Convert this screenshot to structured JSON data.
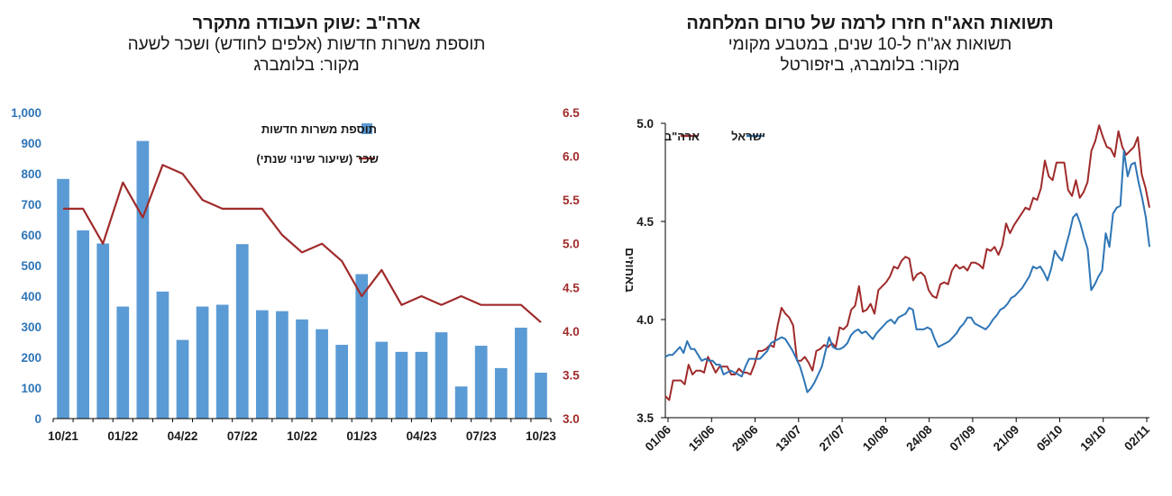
{
  "chart_data": [
    {
      "type": "bar+line",
      "title": "ארה\"ב :שוק העבודה מתקרר",
      "subtitle": "תוספת משרות חדשות (אלפים לחודש) ושכר לשעה",
      "source": "מקור: בלומברג",
      "colors": {
        "bar": "#5b9bd5",
        "line": "#a02b2b",
        "left_axis": "#2e75b6",
        "right_axis": "#a02b2b"
      },
      "categories": [
        "10/21",
        "11/21",
        "12/21",
        "01/22",
        "02/22",
        "03/22",
        "04/22",
        "05/22",
        "06/22",
        "07/22",
        "08/22",
        "09/22",
        "10/22",
        "11/22",
        "12/22",
        "01/23",
        "02/23",
        "03/23",
        "04/23",
        "05/23",
        "06/23",
        "07/23",
        "08/23",
        "09/23",
        "10/23"
      ],
      "xtick_labels": [
        "10/21",
        "01/22",
        "04/22",
        "07/22",
        "10/22",
        "01/23",
        "04/23",
        "07/23",
        "10/23"
      ],
      "series": [
        {
          "name": "תוספת משרות חדשות",
          "kind": "bar",
          "axis": "left",
          "values": [
            783,
            615,
            572,
            366,
            907,
            415,
            257,
            366,
            372,
            570,
            354,
            351,
            324,
            292,
            241,
            472,
            251,
            218,
            218,
            282,
            105,
            238,
            165,
            297,
            150
          ]
        },
        {
          "name": "שכר (שיעור שינוי שנתי)",
          "kind": "line",
          "axis": "right",
          "values": [
            5.4,
            5.4,
            5.0,
            5.7,
            5.3,
            5.9,
            5.8,
            5.5,
            5.4,
            5.4,
            5.4,
            5.1,
            4.9,
            5.0,
            4.8,
            4.4,
            4.7,
            4.3,
            4.4,
            4.3,
            4.4,
            4.3,
            4.3,
            4.3,
            4.1
          ]
        }
      ],
      "ylim_left": [
        0,
        1000
      ],
      "yticks_left": [
        "0",
        "100",
        "200",
        "300",
        "400",
        "500",
        "600",
        "700",
        "800",
        "900",
        "1,000"
      ],
      "ylim_right": [
        3.0,
        6.5
      ],
      "yticks_right": [
        "3.0",
        "3.5",
        "4.0",
        "4.5",
        "5.0",
        "5.5",
        "6.0",
        "6.5"
      ],
      "legend": {
        "bar_label": "תוספת משרות חדשות",
        "line_label": "שכר (שיעור שינוי שנתי)",
        "position": "top-right"
      }
    },
    {
      "type": "line",
      "title": "תשואות האג\"ח חזרו לרמה של טרום המלחמה",
      "subtitle": "תשואות אג\"ח ל-10 שנים, במטבע מקומי",
      "source": "מקור: בלומברג, ביזפורטל",
      "ylabel": "באחוזים",
      "ylim": [
        3.5,
        5.0
      ],
      "yticks": [
        "3.5",
        "4.0",
        "4.5",
        "5.0"
      ],
      "xtick_labels": [
        "01/06",
        "15/06",
        "29/06",
        "13/07",
        "27/07",
        "10/08",
        "24/08",
        "07/09",
        "21/09",
        "05/10",
        "19/10",
        "02/11"
      ],
      "legend": {
        "us_label": "ארה\"ב",
        "il_label": "ישראל",
        "position": "top-left"
      },
      "colors": {
        "us": "#a02b2b",
        "il": "#2e75b6"
      },
      "series": [
        {
          "name": "ארה\"ב",
          "key": "us",
          "values": [
            3.61,
            3.59,
            3.69,
            3.69,
            3.69,
            3.67,
            3.77,
            3.72,
            3.74,
            3.74,
            3.73,
            3.81,
            3.77,
            3.73,
            3.76,
            3.76,
            3.76,
            3.72,
            3.72,
            3.75,
            3.73,
            3.73,
            3.72,
            3.77,
            3.84,
            3.84,
            3.85,
            3.87,
            3.86,
            3.97,
            4.06,
            4.03,
            4.01,
            3.97,
            3.79,
            3.79,
            3.81,
            3.78,
            3.74,
            3.84,
            3.85,
            3.87,
            3.86,
            3.88,
            3.86,
            3.96,
            3.95,
            3.97,
            4.05,
            4.07,
            4.17,
            4.04,
            4.05,
            4.08,
            4.03,
            4.15,
            4.17,
            4.19,
            4.22,
            4.27,
            4.26,
            4.3,
            4.32,
            4.31,
            4.2,
            4.23,
            4.24,
            4.22,
            4.15,
            4.12,
            4.11,
            4.18,
            4.19,
            4.18,
            4.25,
            4.28,
            4.26,
            4.27,
            4.25,
            4.29,
            4.29,
            4.28,
            4.26,
            4.36,
            4.35,
            4.37,
            4.33,
            4.38,
            4.49,
            4.44,
            4.48,
            4.51,
            4.54,
            4.57,
            4.56,
            4.62,
            4.61,
            4.67,
            4.81,
            4.73,
            4.71,
            4.8,
            4.8,
            4.8,
            4.66,
            4.63,
            4.71,
            4.62,
            4.65,
            4.7,
            4.86,
            4.91,
            4.99,
            4.93,
            4.88,
            4.87,
            4.83,
            4.96,
            4.88,
            4.84,
            4.86,
            4.88,
            4.93,
            4.74,
            4.67,
            4.57
          ]
        },
        {
          "name": "ישראל",
          "key": "il",
          "values": [
            3.81,
            3.82,
            3.82,
            3.84,
            3.86,
            3.83,
            3.89,
            3.85,
            3.85,
            3.82,
            3.79,
            3.8,
            3.79,
            3.79,
            3.77,
            3.77,
            3.72,
            3.73,
            3.74,
            3.73,
            3.72,
            3.71,
            3.76,
            3.8,
            3.8,
            3.8,
            3.8,
            3.82,
            3.84,
            3.88,
            3.89,
            3.9,
            3.91,
            3.9,
            3.87,
            3.84,
            3.8,
            3.76,
            3.7,
            3.63,
            3.65,
            3.68,
            3.72,
            3.76,
            3.84,
            3.91,
            3.86,
            3.85,
            3.85,
            3.86,
            3.88,
            3.92,
            3.94,
            3.95,
            3.93,
            3.94,
            3.92,
            3.9,
            3.93,
            3.95,
            3.97,
            3.99,
            4.0,
            3.98,
            4.01,
            4.02,
            4.03,
            4.06,
            4.05,
            3.95,
            3.95,
            3.95,
            3.96,
            3.95,
            3.9,
            3.86,
            3.87,
            3.88,
            3.89,
            3.91,
            3.93,
            3.96,
            3.98,
            4.01,
            4.01,
            3.98,
            3.97,
            3.96,
            3.95,
            3.97,
            4.0,
            4.02,
            4.05,
            4.06,
            4.08,
            4.11,
            4.12,
            4.14,
            4.16,
            4.19,
            4.22,
            4.27,
            4.26,
            4.27,
            4.24,
            4.2,
            4.26,
            4.35,
            4.32,
            4.3,
            4.37,
            4.44,
            4.52,
            4.54,
            4.49,
            4.42,
            4.36,
            4.15,
            4.18,
            4.22,
            4.25,
            4.44,
            4.37,
            4.54,
            4.57,
            4.58,
            4.86,
            4.73,
            4.79,
            4.8,
            4.7,
            4.62,
            4.52,
            4.37
          ]
        }
      ]
    }
  ]
}
